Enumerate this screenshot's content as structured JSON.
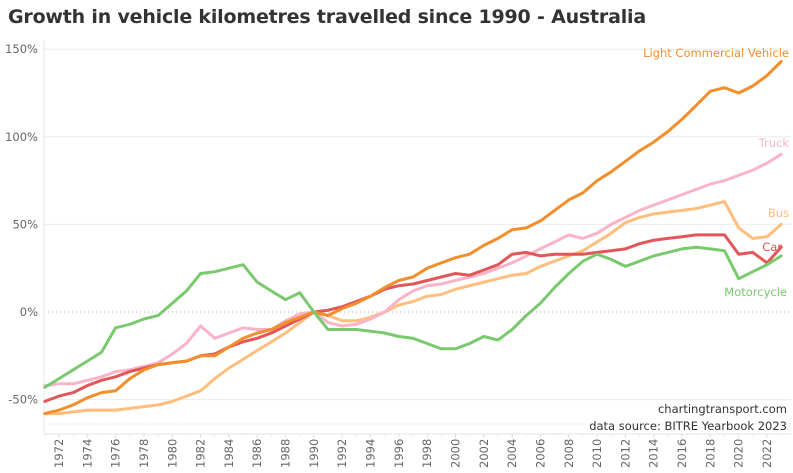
{
  "chart_data": {
    "type": "line",
    "title": "Growth in vehicle kilometres travelled since 1990 - Australia",
    "xlabel": "",
    "ylabel": "",
    "ylim": [
      -60,
      152
    ],
    "xlim": [
      1970.5,
      2024.0
    ],
    "grid": true,
    "legend": "inline-right",
    "y_ticks": [
      {
        "value": 150,
        "label": "150%"
      },
      {
        "value": 100,
        "label": "100%"
      },
      {
        "value": 50,
        "label": "50%"
      },
      {
        "value": 0,
        "label": "0%"
      },
      {
        "value": -50,
        "label": "-50%"
      }
    ],
    "x_ticks": [
      "1972",
      "1974",
      "1976",
      "1978",
      "1980",
      "1982",
      "1984",
      "1986",
      "1988",
      "1990",
      "1992",
      "1994",
      "1996",
      "1998",
      "2000",
      "2002",
      "2004",
      "2006",
      "2008",
      "2010",
      "2012",
      "2014",
      "2016",
      "2018",
      "2020",
      "2022"
    ],
    "x": [
      1971,
      1972,
      1973,
      1974,
      1975,
      1976,
      1977,
      1978,
      1979,
      1980,
      1981,
      1982,
      1983,
      1984,
      1985,
      1986,
      1987,
      1988,
      1989,
      1990,
      1991,
      1992,
      1993,
      1994,
      1995,
      1996,
      1997,
      1998,
      1999,
      2000,
      2001,
      2002,
      2003,
      2004,
      2005,
      2006,
      2007,
      2008,
      2009,
      2010,
      2011,
      2012,
      2013,
      2014,
      2015,
      2016,
      2017,
      2018,
      2019,
      2020,
      2021,
      2022,
      2023
    ],
    "series": [
      {
        "name": "Light Commercial Vehicle",
        "color": "#f28e2b",
        "values": [
          -58,
          -56,
          -53,
          -49,
          -46,
          -45,
          -38,
          -33,
          -30,
          -29,
          -28,
          -25,
          -25,
          -20,
          -15,
          -12,
          -10,
          -6,
          -3,
          0,
          -2,
          2,
          5,
          9,
          14,
          18,
          20,
          25,
          28,
          31,
          33,
          38,
          42,
          47,
          48,
          52,
          58,
          64,
          68,
          75,
          80,
          86,
          92,
          97,
          103,
          110,
          118,
          126,
          128,
          125,
          129,
          135,
          143
        ]
      },
      {
        "name": "Truck",
        "color": "#f9b4c8",
        "values": [
          -42,
          -41,
          -41,
          -39,
          -37,
          -34,
          -33,
          -31,
          -29,
          -24,
          -18,
          -8,
          -15,
          -12,
          -9,
          -10,
          -10,
          -5,
          -1,
          0,
          -6,
          -8,
          -7,
          -4,
          0,
          7,
          12,
          15,
          16,
          18,
          20,
          22,
          25,
          28,
          32,
          36,
          40,
          44,
          42,
          45,
          50,
          54,
          58,
          61,
          64,
          67,
          70,
          73,
          75,
          78,
          81,
          85,
          90
        ]
      },
      {
        "name": "Bus",
        "color": "#ffbe7d",
        "values": [
          -58,
          -58,
          -57,
          -56,
          -56,
          -56,
          -55,
          -54,
          -53,
          -51,
          -48,
          -45,
          -38,
          -32,
          -27,
          -22,
          -17,
          -12,
          -6,
          0,
          -2,
          -5,
          -5,
          -3,
          0,
          4,
          6,
          9,
          10,
          13,
          15,
          17,
          19,
          21,
          22,
          26,
          29,
          32,
          35,
          40,
          45,
          51,
          54,
          56,
          57,
          58,
          59,
          61,
          63,
          48,
          42,
          43,
          50
        ]
      },
      {
        "name": "Car",
        "color": "#e15759",
        "values": [
          -51,
          -48,
          -46,
          -42,
          -39,
          -37,
          -34,
          -32,
          -30,
          -29,
          -28,
          -25,
          -24,
          -20,
          -17,
          -15,
          -12,
          -8,
          -4,
          0,
          1,
          3,
          6,
          9,
          13,
          15,
          16,
          18,
          20,
          22,
          21,
          24,
          27,
          33,
          34,
          32,
          33,
          33,
          33,
          34,
          35,
          36,
          39,
          41,
          42,
          43,
          44,
          44,
          44,
          33,
          34,
          28,
          37
        ]
      },
      {
        "name": "Motorcycle",
        "color": "#7bc96f",
        "values": [
          -43,
          -38,
          -33,
          -28,
          -23,
          -9,
          -7,
          -4,
          -2,
          5,
          12,
          22,
          23,
          25,
          27,
          17,
          12,
          7,
          11,
          0,
          -10,
          -10,
          -10,
          -11,
          -12,
          -14,
          -15,
          -18,
          -21,
          -21,
          -18,
          -14,
          -16,
          -10,
          -2,
          5,
          14,
          22,
          29,
          33,
          30,
          26,
          29,
          32,
          34,
          36,
          37,
          36,
          35,
          19,
          23,
          27,
          32
        ]
      }
    ],
    "annotations": [
      "chartingtransport.com",
      "data source: BITRE Yearbook 2023"
    ]
  }
}
